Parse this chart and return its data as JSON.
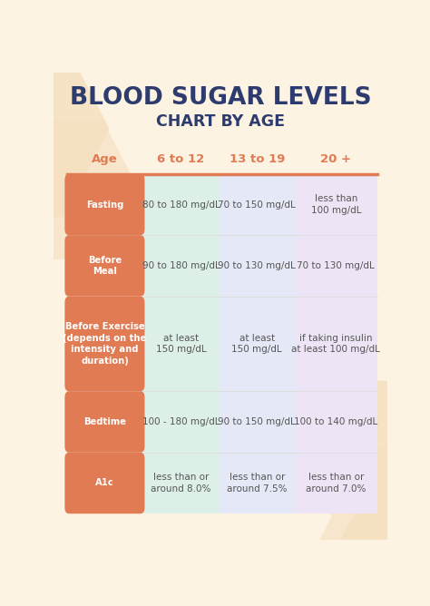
{
  "title1": "BLOOD SUGAR LEVELS",
  "title2": "CHART BY AGE",
  "bg_color": "#fdf3e3",
  "title1_color": "#2d3b6e",
  "title2_color": "#2d3b6e",
  "header_color": "#e07b54",
  "row_label_bg": "#e07b54",
  "row_label_text": "#ffffff",
  "col1_bg": "#ddf0e8",
  "col2_bg": "#e5e8f7",
  "col3_bg": "#ede5f5",
  "header_line_color": "#e07b54",
  "col_text_color": "#555555",
  "divider_color": "#dddddd",
  "headers": [
    "Age",
    "6 to 12",
    "13 to 19",
    "20 +"
  ],
  "rows": [
    {
      "label": "Fasting",
      "col1": "80 to 180 mg/dL",
      "col2": "70 to 150 mg/dL",
      "col3": "less than\n100 mg/dL"
    },
    {
      "label": "Before\nMeal",
      "col1": "90 to 180 mg/dL",
      "col2": "90 to 130 mg/dL",
      "col3": "70 to 130 mg/dL"
    },
    {
      "label": "Before Exercise\n(depends on the\nintensity and\nduration)",
      "col1": "at least\n150 mg/dL",
      "col2": "at least\n150 mg/dL",
      "col3": "if taking insulin\nat least 100 mg/dL"
    },
    {
      "label": "Bedtime",
      "col1": "100 - 180 mg/dL",
      "col2": "90 to 150 mg/dL",
      "col3": "100 to 140 mg/dL"
    },
    {
      "label": "A1c",
      "col1": "less than or\naround 8.0%",
      "col2": "less than or\naround 7.5%",
      "col3": "less than or\naround 7.0%"
    }
  ],
  "chevron_color": "#f5dfc0",
  "figsize": [
    4.74,
    6.68
  ],
  "dpi": 100
}
